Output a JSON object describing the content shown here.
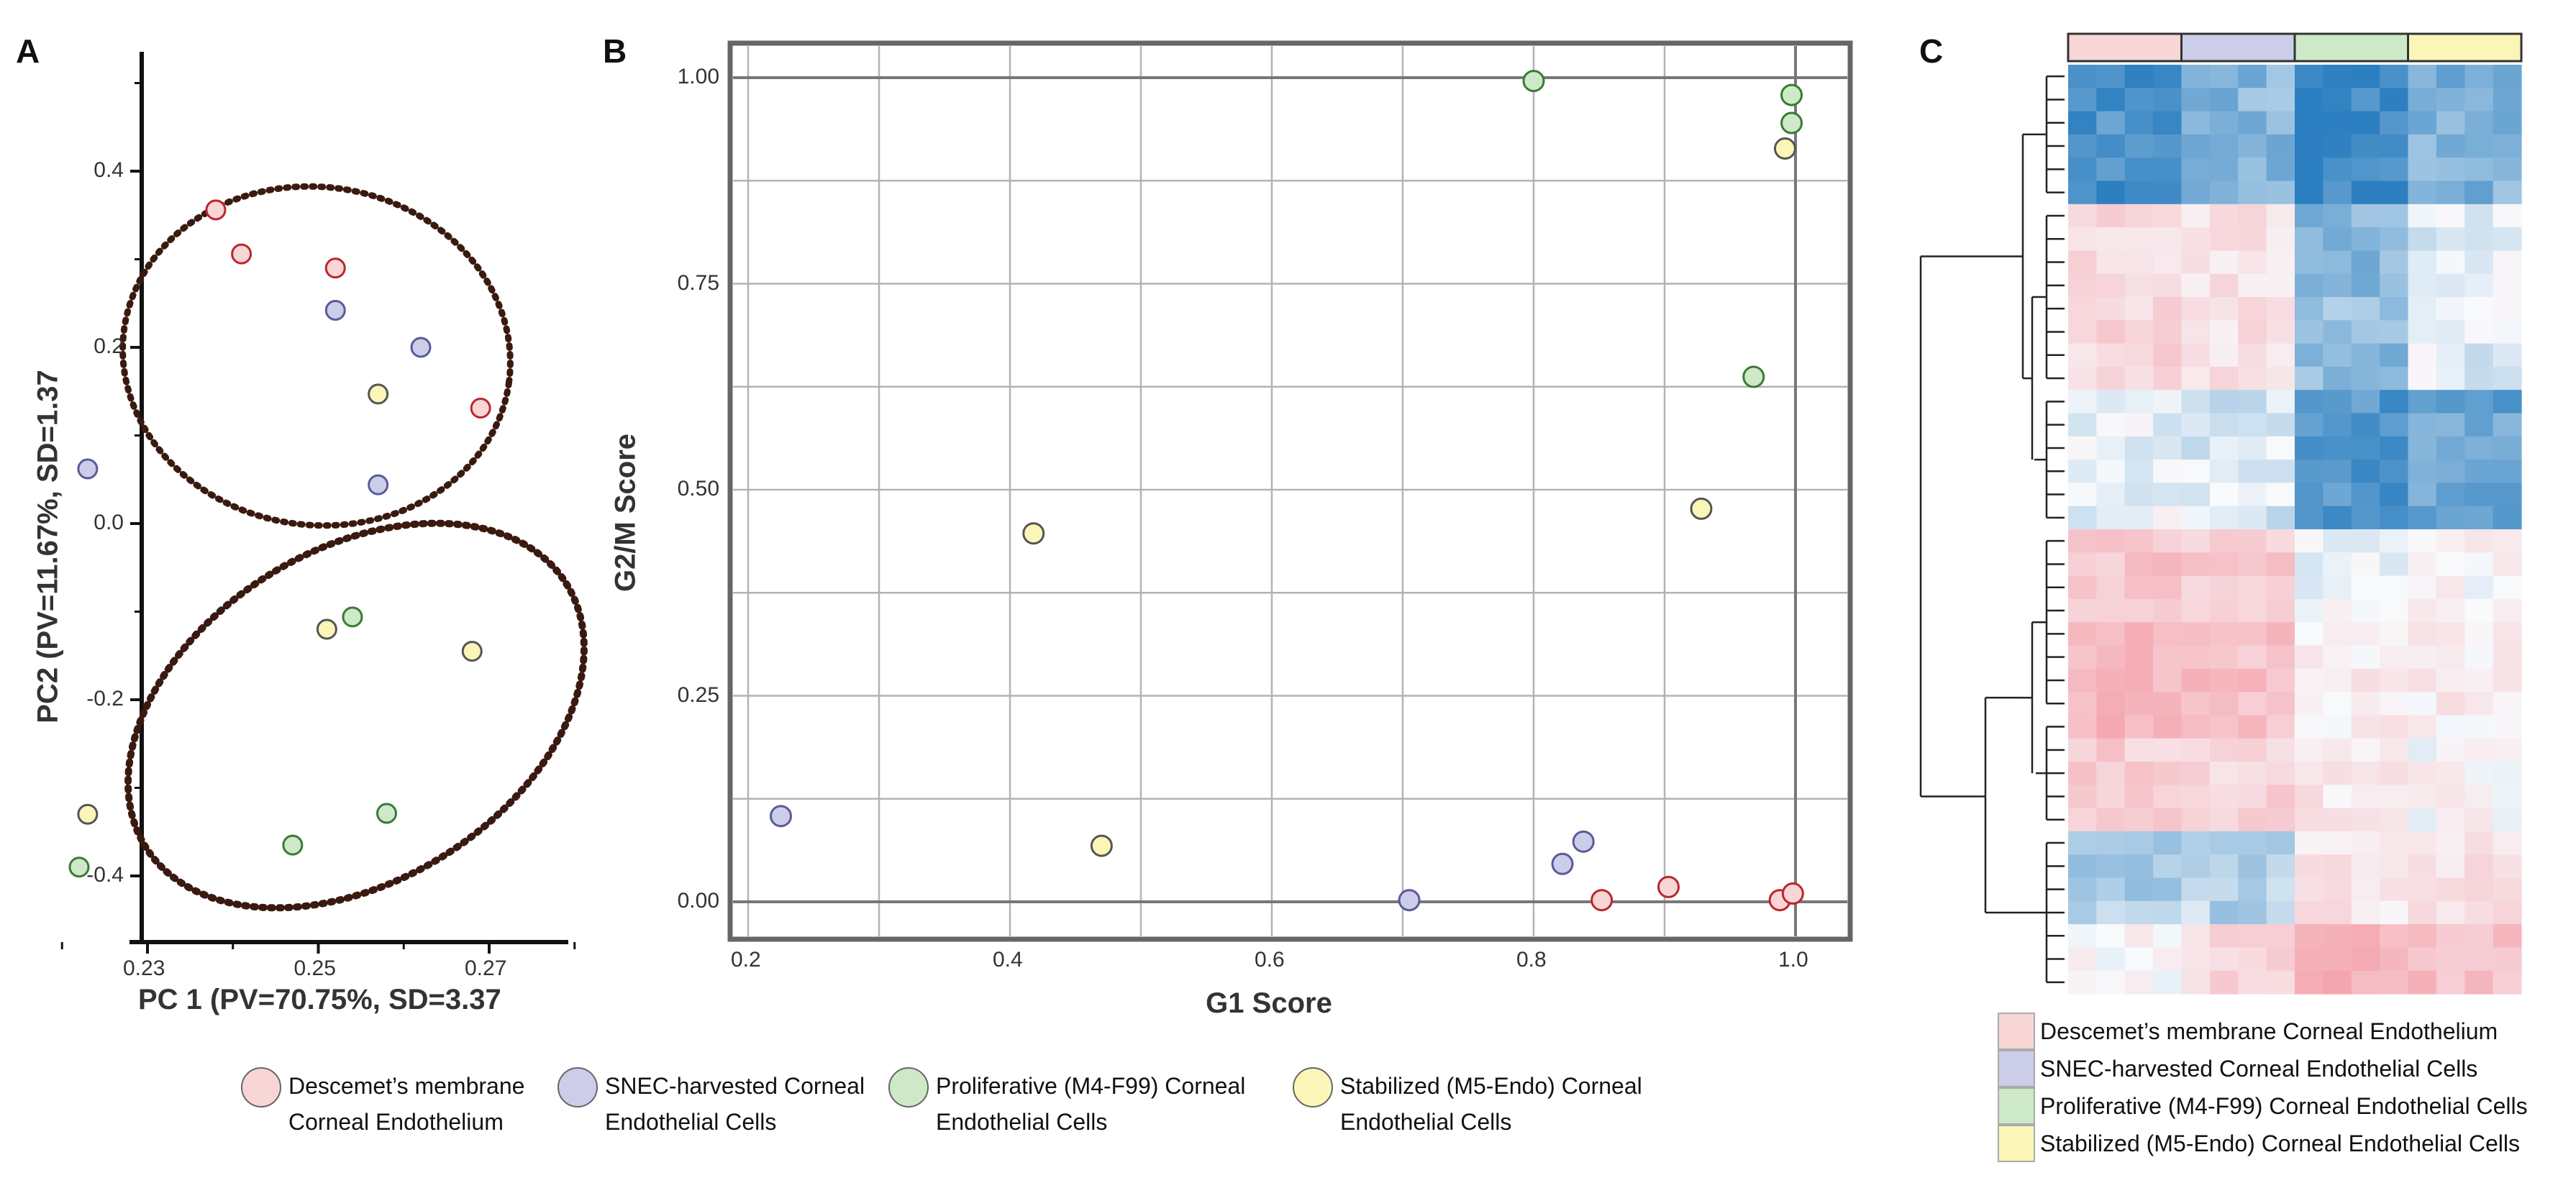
{
  "colors": {
    "dm": "#f9d6d6",
    "dm_stroke": "#b8282e",
    "snec": "#cccde8",
    "snec_stroke": "#5a5a9a",
    "m4": "#cde9c8",
    "m4_stroke": "#3a7a36",
    "m5": "#fbf6b8",
    "m5_stroke": "#555555",
    "ellipse": "#3a1a10",
    "heat_low": "#2c7fc0",
    "heat_high": "#f49aa4"
  },
  "panels": {
    "a": "A",
    "b": "B",
    "c": "C"
  },
  "chart_data": [
    {
      "type": "scatter",
      "panel": "A",
      "xlabel": "PC 1 (PV=70.75%, SD=3.37",
      "ylabel": "PC2 (PV=11.67%, SD=1.37",
      "xlim": [
        0.22,
        0.285
      ],
      "ylim": [
        -0.47,
        0.54
      ],
      "xticks": [
        "0.23",
        "0.25",
        "0.27"
      ],
      "yticks": [
        "0.4",
        "0.2",
        "0.0",
        "-0.2",
        "-0.4"
      ],
      "series": [
        {
          "name": "Descemet’s membrane Corneal Endothelium",
          "key": "dm",
          "points": [
            [
              0.238,
              0.356
            ],
            [
              0.241,
              0.306
            ],
            [
              0.252,
              0.29
            ],
            [
              0.269,
              0.131
            ]
          ]
        },
        {
          "name": "SNEC-harvested Corneal Endothelial Cells",
          "key": "snec",
          "points": [
            [
              0.252,
              0.242
            ],
            [
              0.262,
              0.2
            ],
            [
              0.223,
              0.062
            ],
            [
              0.257,
              0.044
            ]
          ]
        },
        {
          "name": "Proliferative (M4-F99) Corneal Endothelial Cells",
          "key": "m4",
          "points": [
            [
              0.254,
              -0.106
            ],
            [
              0.258,
              -0.329
            ],
            [
              0.247,
              -0.365
            ],
            [
              0.222,
              -0.39
            ]
          ]
        },
        {
          "name": "Stabilized (M5-Endo) Corneal Endothelial Cells",
          "key": "m5",
          "points": [
            [
              0.257,
              0.147
            ],
            [
              0.251,
              -0.12
            ],
            [
              0.268,
              -0.145
            ],
            [
              0.223,
              -0.33
            ]
          ]
        }
      ]
    },
    {
      "type": "scatter",
      "panel": "B",
      "xlabel": "G1 Score",
      "ylabel": "G2/M Score",
      "xlim": [
        0.195,
        1.105
      ],
      "ylim": [
        -0.045,
        1.045
      ],
      "xticks": [
        "0.2",
        "0.4",
        "0.6",
        "0.8",
        "1.0"
      ],
      "yticks": [
        "1.00",
        "0.75",
        "0.50",
        "0.25",
        "0.00"
      ],
      "grid": true,
      "series": [
        {
          "name": "Descemet’s membrane Corneal Endothelium",
          "key": "dm",
          "points": [
            [
              0.852,
              0.002
            ],
            [
              0.903,
              0.018
            ],
            [
              0.988,
              0.002
            ],
            [
              0.998,
              0.01
            ]
          ]
        },
        {
          "name": "SNEC-harvested Corneal Endothelial Cells",
          "key": "snec",
          "points": [
            [
              0.225,
              0.104
            ],
            [
              0.705,
              0.002
            ],
            [
              0.822,
              0.046
            ],
            [
              0.838,
              0.073
            ]
          ]
        },
        {
          "name": "Proliferative (M4-F99) Corneal Endothelial Cells",
          "key": "m4",
          "points": [
            [
              0.8,
              0.996
            ],
            [
              0.997,
              0.979
            ],
            [
              0.997,
              0.945
            ],
            [
              0.968,
              0.637
            ]
          ]
        },
        {
          "name": "Stabilized (M5-Endo) Corneal Endothelial Cells",
          "key": "m5",
          "points": [
            [
              0.992,
              0.914
            ],
            [
              0.928,
              0.477
            ],
            [
              0.418,
              0.447
            ],
            [
              0.47,
              0.068
            ]
          ]
        }
      ]
    },
    {
      "type": "heatmap",
      "panel": "C",
      "column_groups": [
        "dm",
        "snec",
        "m4",
        "m5"
      ],
      "columns_per_group": 4,
      "row_count": 40,
      "color_low": "#2c7fc0",
      "color_high": "#f49aa4",
      "row_profile": [
        {
          "rows": 6,
          "values": [
            -0.85,
            -0.55,
            -0.95,
            -0.6
          ]
        },
        {
          "rows": 8,
          "values": [
            0.35,
            0.25,
            -0.5,
            -0.1
          ]
        },
        {
          "rows": 6,
          "values": [
            -0.05,
            -0.15,
            -0.8,
            -0.7
          ]
        },
        {
          "rows": 4,
          "values": [
            0.55,
            0.5,
            0.0,
            0.05
          ]
        },
        {
          "rows": 5,
          "values": [
            0.7,
            0.6,
            0.15,
            0.15
          ]
        },
        {
          "rows": 4,
          "values": [
            0.45,
            0.4,
            0.2,
            0.05
          ]
        },
        {
          "rows": 4,
          "values": [
            -0.35,
            -0.3,
            0.2,
            0.25
          ]
        },
        {
          "rows": 3,
          "values": [
            0.1,
            0.35,
            0.75,
            0.6
          ]
        }
      ]
    }
  ],
  "legend_a_b": [
    {
      "key": "dm",
      "line1": "Descemet’s membrane",
      "line2": "Corneal Endothelium"
    },
    {
      "key": "snec",
      "line1": "SNEC-harvested Corneal",
      "line2": "Endothelial Cells"
    },
    {
      "key": "m4",
      "line1": "Proliferative (M4-F99) Corneal",
      "line2": "Endothelial Cells"
    },
    {
      "key": "m5",
      "line1": "Stabilized (M5-Endo) Corneal",
      "line2": "Endothelial Cells"
    }
  ],
  "legend_c": [
    {
      "key": "dm",
      "label": "Descemet’s membrane Corneal Endothelium"
    },
    {
      "key": "snec",
      "label": "SNEC-harvested Corneal Endothelial Cells"
    },
    {
      "key": "m4",
      "label": "Proliferative (M4-F99) Corneal Endothelial Cells"
    },
    {
      "key": "m5",
      "label": "Stabilized (M5-Endo) Corneal Endothelial Cells"
    }
  ]
}
